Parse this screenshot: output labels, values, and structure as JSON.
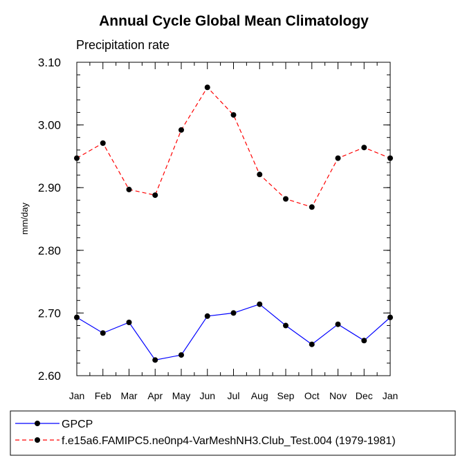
{
  "chart_data": {
    "type": "line",
    "title": "Annual Cycle Global Mean Climatology",
    "subtitle": "Precipitation rate",
    "xlabel": "",
    "ylabel": "mm/day",
    "categories": [
      "Jan",
      "Feb",
      "Mar",
      "Apr",
      "May",
      "Jun",
      "Jul",
      "Aug",
      "Sep",
      "Oct",
      "Nov",
      "Dec",
      "Jan"
    ],
    "ylim": [
      2.6,
      3.1
    ],
    "yticks": [
      "2.60",
      "2.70",
      "2.80",
      "2.90",
      "3.00",
      "3.10"
    ],
    "grid": false,
    "legend_position": "bottom",
    "series": [
      {
        "name": "GPCP",
        "color": "#0000ff",
        "dash": "solid",
        "values": [
          2.693,
          2.668,
          2.685,
          2.625,
          2.633,
          2.695,
          2.7,
          2.714,
          2.68,
          2.65,
          2.682,
          2.656,
          2.693
        ]
      },
      {
        "name": "f.e15a6.FAMIPC5.ne0np4-VarMeshNH3.Club_Test.004 (1979-1981)",
        "color": "#ff0000",
        "dash": "dashed",
        "values": [
          2.947,
          2.971,
          2.897,
          2.888,
          2.992,
          3.06,
          3.016,
          2.921,
          2.882,
          2.869,
          2.947,
          2.964,
          2.947
        ]
      }
    ]
  }
}
